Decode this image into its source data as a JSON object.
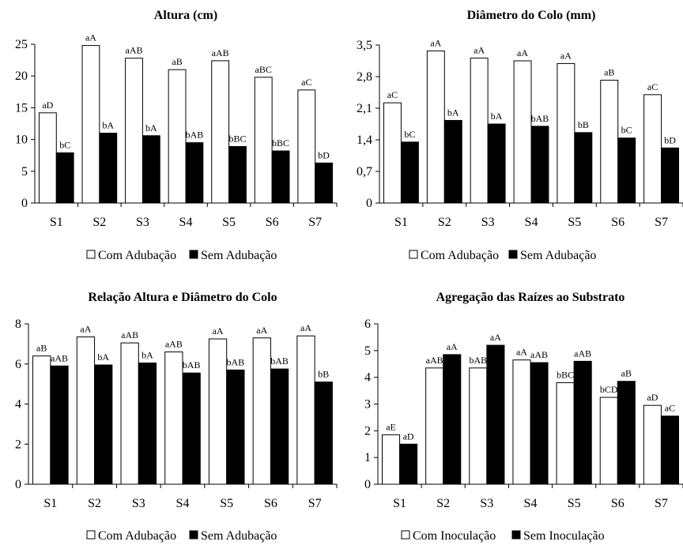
{
  "chart_data": [
    {
      "type": "bar",
      "title": "Altura (cm)",
      "categories": [
        "S1",
        "S2",
        "S3",
        "S4",
        "S5",
        "S6",
        "S7"
      ],
      "ylim": [
        0,
        25
      ],
      "yticks": [
        "0",
        "5",
        "10",
        "15",
        "20",
        "25"
      ],
      "ytick_values": [
        0,
        5,
        10,
        15,
        20,
        25
      ],
      "series": [
        {
          "name": "Com Adubação",
          "color": "#ffffff",
          "values": [
            14.2,
            24.8,
            22.8,
            21.0,
            22.4,
            19.8,
            17.8
          ],
          "labels": [
            "aD",
            "aA",
            "aAB",
            "aB",
            "aAB",
            "aBC",
            "aC"
          ]
        },
        {
          "name": "Sem Adubação",
          "color": "#000000",
          "values": [
            7.9,
            11.0,
            10.6,
            9.5,
            8.9,
            8.2,
            6.3
          ],
          "labels": [
            "bC",
            "bA",
            "bA",
            "bAB",
            "bBC",
            "bBC",
            "bD"
          ]
        }
      ],
      "legend": "bottom"
    },
    {
      "type": "bar",
      "title": "Diâmetro do Colo (mm)",
      "categories": [
        "S1",
        "S2",
        "S3",
        "S4",
        "S5",
        "S6",
        "S7"
      ],
      "ylim": [
        0,
        3.5
      ],
      "yticks": [
        "0",
        "0,7",
        "1,4",
        "2,1",
        "2,8",
        "3,5"
      ],
      "ytick_values": [
        0,
        0.7,
        1.4,
        2.1,
        2.8,
        3.5
      ],
      "series": [
        {
          "name": "Com Adubação",
          "color": "#ffffff",
          "values": [
            2.22,
            3.37,
            3.21,
            3.15,
            3.09,
            2.72,
            2.4
          ],
          "labels": [
            "aC",
            "aA",
            "aA",
            "aA",
            "aA",
            "aB",
            "aC"
          ]
        },
        {
          "name": "Sem Adubação",
          "color": "#000000",
          "values": [
            1.35,
            1.83,
            1.75,
            1.7,
            1.56,
            1.44,
            1.22
          ],
          "labels": [
            "bC",
            "bA",
            "bA",
            "bAB",
            "bB",
            "bC",
            "bD"
          ]
        }
      ],
      "legend": "bottom"
    },
    {
      "type": "bar",
      "title": "Relação Altura e Diâmetro do Colo",
      "categories": [
        "S1",
        "S2",
        "S3",
        "S4",
        "S5",
        "S6",
        "S7"
      ],
      "ylim": [
        0,
        8
      ],
      "yticks": [
        "0",
        "2",
        "4",
        "6",
        "8"
      ],
      "ytick_values": [
        0,
        2,
        4,
        6,
        8
      ],
      "series": [
        {
          "name": "Com Adubação",
          "color": "#ffffff",
          "values": [
            6.4,
            7.35,
            7.05,
            6.6,
            7.25,
            7.3,
            7.4
          ],
          "labels": [
            "aB",
            "aA",
            "aAB",
            "aAB",
            "aA",
            "aA",
            "aA"
          ]
        },
        {
          "name": "Sem Adubação",
          "color": "#000000",
          "values": [
            5.9,
            5.95,
            6.05,
            5.55,
            5.7,
            5.75,
            5.1
          ],
          "labels": [
            "aAB",
            "bA",
            "bA",
            "bAB",
            "bAB",
            "bAB",
            "bB"
          ]
        }
      ],
      "legend": "bottom"
    },
    {
      "type": "bar",
      "title": "Agregação das Raízes ao Substrato",
      "categories": [
        "S1",
        "S2",
        "S3",
        "S4",
        "S5",
        "S6",
        "S7"
      ],
      "ylim": [
        0,
        6
      ],
      "yticks": [
        "0",
        "1",
        "2",
        "3",
        "4",
        "5",
        "6"
      ],
      "ytick_values": [
        0,
        1,
        2,
        3,
        4,
        5,
        6
      ],
      "series": [
        {
          "name": "Com Inoculação",
          "color": "#ffffff",
          "values": [
            1.85,
            4.35,
            4.35,
            4.65,
            3.8,
            3.25,
            2.95
          ],
          "labels": [
            "aE",
            "aAB",
            "bAB",
            "aA",
            "bBC",
            "bCD",
            "aD"
          ]
        },
        {
          "name": "Sem Inoculação",
          "color": "#000000",
          "values": [
            1.5,
            4.85,
            5.2,
            4.55,
            4.6,
            3.85,
            2.55
          ],
          "labels": [
            "aD",
            "aA",
            "aA",
            "aAB",
            "aAB",
            "aB",
            "aC"
          ]
        }
      ],
      "legend": "bottom"
    }
  ]
}
